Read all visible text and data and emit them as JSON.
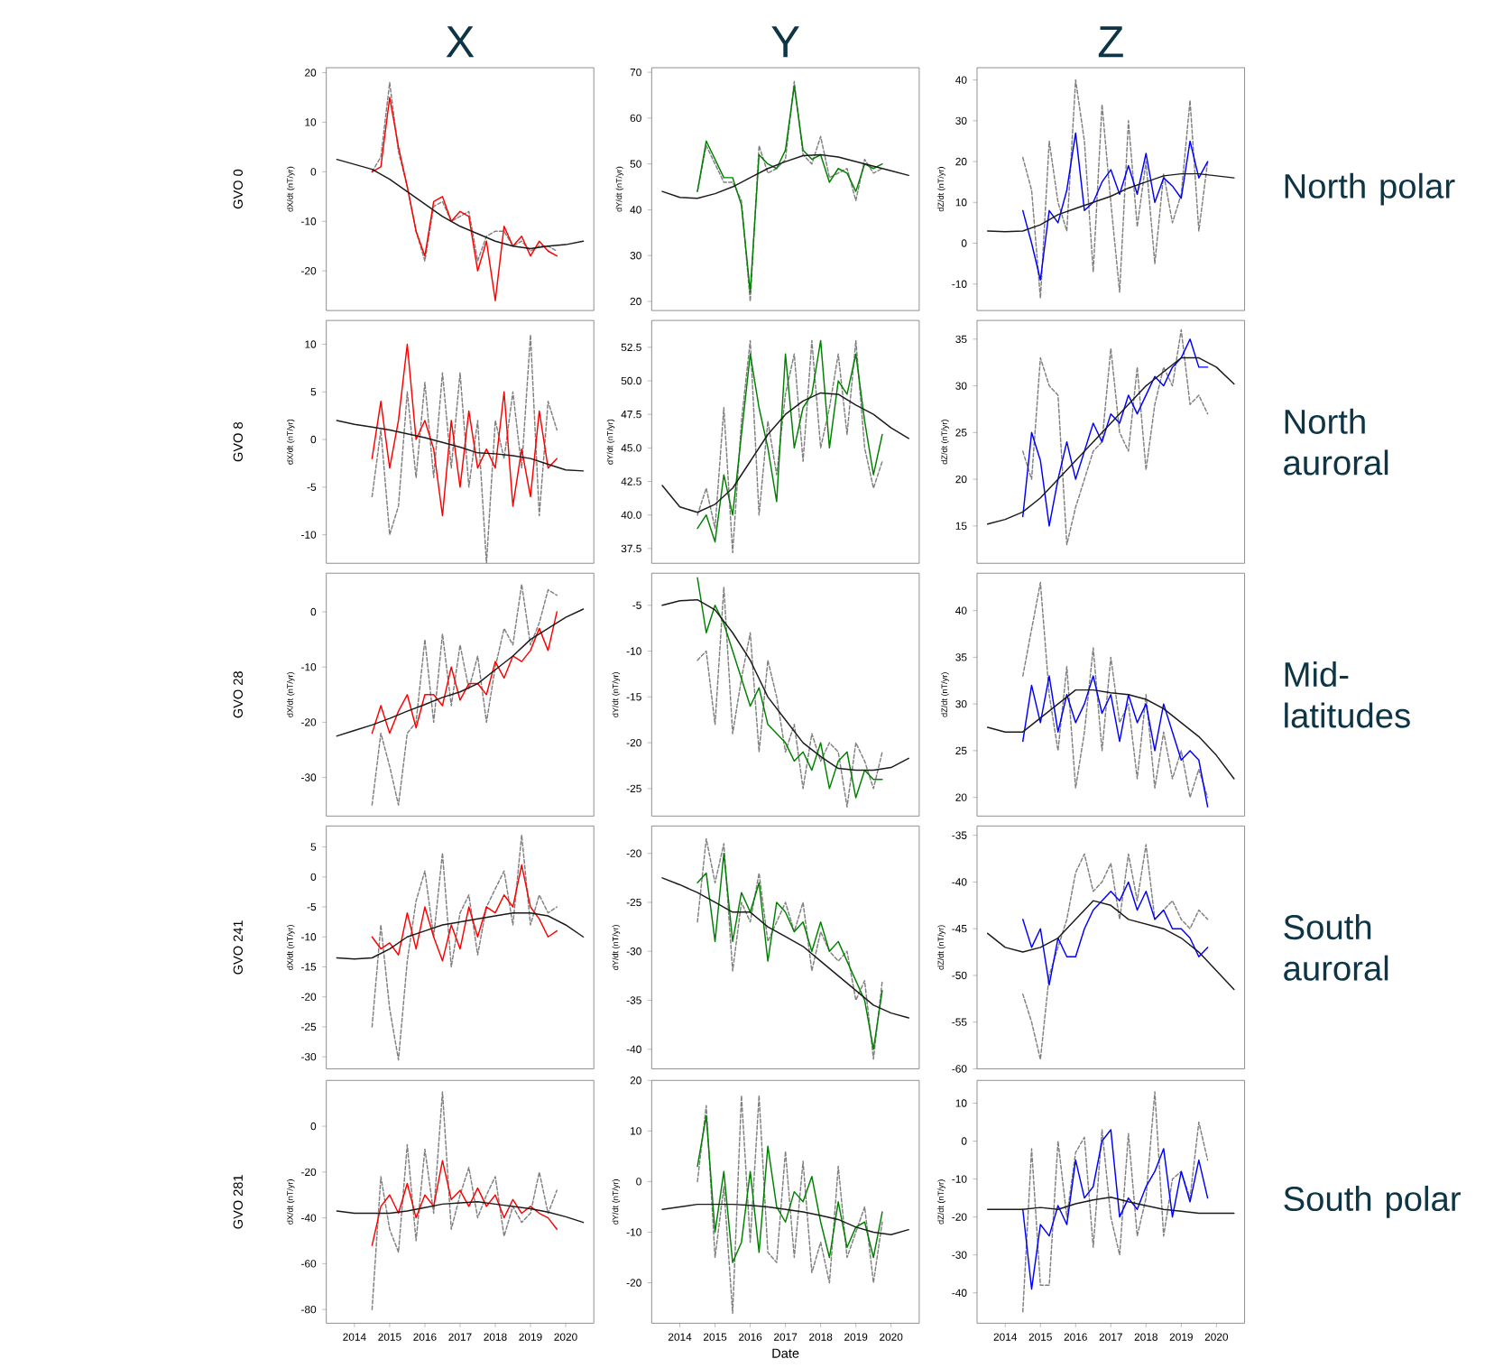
{
  "chart_data": [
    {
      "type": "line",
      "title": "X",
      "ylabel": "dX/dt (nT/yr)",
      "annotations": [
        "GVO 0"
      ],
      "tick_labels": "y",
      "xlim": [
        2013.2,
        2020.8
      ],
      "ylim": [
        -28,
        21
      ],
      "yticks": [
        -20,
        -10,
        0,
        10,
        20
      ],
      "x": [
        2014.5,
        2014.75,
        2015,
        2015.25,
        2015.5,
        2015.75,
        2016,
        2016.25,
        2016.5,
        2016.75,
        2017,
        2017.25,
        2017.5,
        2017.75,
        2018,
        2018.25,
        2018.5,
        2018.75,
        2019,
        2019.25,
        2019.5,
        2019.75
      ],
      "series": [
        {
          "color": "#808080",
          "line_style": "dashed",
          "values": [
            0,
            3,
            18,
            4,
            -3,
            -12,
            -18,
            -7,
            -6,
            -10,
            -9,
            -8,
            -18,
            -13,
            -12,
            -12,
            -15,
            -14,
            -16,
            -15,
            -15,
            -16
          ]
        },
        {
          "color": "#ff0000",
          "values": [
            0,
            1,
            15,
            5,
            -3,
            -12,
            -17,
            -6,
            -5,
            -10,
            -8,
            -9,
            -20,
            -14,
            -26,
            -11,
            -15,
            -13,
            -17,
            -14,
            -16,
            -17
          ]
        },
        {
          "color": "#1a1a1a",
          "x": [
            2013.5,
            2014,
            2014.5,
            2015,
            2015.5,
            2016,
            2016.5,
            2017,
            2017.5,
            2018,
            2018.5,
            2019,
            2019.5,
            2020,
            2020.5
          ],
          "values": [
            2.5,
            1.5,
            0.5,
            -1.5,
            -4,
            -6.5,
            -9,
            -11,
            -12.5,
            -14,
            -15,
            -15.5,
            -15,
            -14.7,
            -14
          ]
        }
      ]
    },
    {
      "type": "line",
      "title": "Y",
      "ylabel": "dY/dt (nT/yr)",
      "tick_labels": "y",
      "xlim": [
        2013.2,
        2020.8
      ],
      "ylim": [
        18,
        71
      ],
      "yticks": [
        20,
        30,
        40,
        50,
        60,
        70
      ],
      "x": [
        2014.5,
        2014.75,
        2015,
        2015.25,
        2015.5,
        2015.75,
        2016,
        2016.25,
        2016.5,
        2016.75,
        2017,
        2017.25,
        2017.5,
        2017.75,
        2018,
        2018.25,
        2018.5,
        2018.75,
        2019,
        2019.25,
        2019.5,
        2019.75
      ],
      "series": [
        {
          "color": "#808080",
          "line_style": "dashed",
          "values": [
            44,
            54,
            50,
            46,
            46,
            42,
            20,
            54,
            48,
            49,
            51,
            68,
            52,
            50,
            56,
            47,
            48,
            49,
            42,
            51,
            48,
            49
          ]
        },
        {
          "color": "#008000",
          "values": [
            44,
            55,
            51,
            47,
            47,
            41,
            22,
            52,
            50,
            49,
            53,
            67,
            53,
            51,
            52,
            46,
            49,
            48,
            44,
            50,
            49,
            50
          ]
        },
        {
          "color": "#1a1a1a",
          "x": [
            2013.5,
            2014,
            2014.5,
            2015,
            2015.5,
            2016,
            2016.5,
            2017,
            2017.5,
            2018,
            2018.5,
            2019,
            2019.5,
            2020,
            2020.5
          ],
          "values": [
            44,
            42.7,
            42.5,
            43.5,
            45,
            47,
            49,
            50.5,
            51.8,
            52,
            51.5,
            50.5,
            49.5,
            48.5,
            47.5
          ]
        }
      ]
    },
    {
      "type": "line",
      "title": "Z",
      "ylabel": "dZ/dt (nT/yr)",
      "annotations": [
        "North polar"
      ],
      "tick_labels": "y",
      "xlim": [
        2013.2,
        2020.8
      ],
      "ylim": [
        -16.5,
        43
      ],
      "yticks": [
        -10,
        0,
        10,
        20,
        30,
        40
      ],
      "x": [
        2014.5,
        2014.75,
        2015,
        2015.25,
        2015.5,
        2015.75,
        2016,
        2016.25,
        2016.5,
        2016.75,
        2017,
        2017.25,
        2017.5,
        2017.75,
        2018,
        2018.25,
        2018.5,
        2018.75,
        2019,
        2019.25,
        2019.5,
        2019.75
      ],
      "series": [
        {
          "color": "#808080",
          "line_style": "dashed",
          "values": [
            21,
            13,
            -13.5,
            25,
            10,
            3,
            40,
            25,
            -7,
            34,
            10,
            -12,
            30,
            4,
            20,
            -5,
            17,
            5,
            12,
            35,
            3,
            20
          ]
        },
        {
          "color": "#0000ff",
          "values": [
            8,
            0,
            -9,
            8,
            5,
            13,
            27,
            8,
            10,
            15,
            18,
            12,
            19,
            12,
            22,
            10,
            16,
            14,
            11,
            25,
            16,
            20
          ]
        },
        {
          "color": "#1a1a1a",
          "x": [
            2013.5,
            2014,
            2014.5,
            2015,
            2015.5,
            2016,
            2016.5,
            2017,
            2017.5,
            2018,
            2018.5,
            2019,
            2019.5,
            2020,
            2020.5
          ],
          "values": [
            3,
            2.8,
            3,
            4.5,
            7,
            8.5,
            10,
            11.5,
            13.5,
            15,
            16.5,
            17,
            17,
            16.5,
            16
          ]
        }
      ]
    },
    {
      "type": "line",
      "ylabel": "dX/dt (nT/yr)",
      "annotations": [
        "GVO 8"
      ],
      "tick_labels": "y",
      "xlim": [
        2013.2,
        2020.8
      ],
      "ylim": [
        -13,
        12.5
      ],
      "yticks": [
        -10,
        -5,
        0,
        5,
        10
      ],
      "x": [
        2014.5,
        2014.75,
        2015,
        2015.25,
        2015.5,
        2015.75,
        2016,
        2016.25,
        2016.5,
        2016.75,
        2017,
        2017.25,
        2017.5,
        2017.75,
        2018,
        2018.25,
        2018.5,
        2018.75,
        2019,
        2019.25,
        2019.5,
        2019.75
      ],
      "series": [
        {
          "color": "#808080",
          "line_style": "dashed",
          "values": [
            -6,
            1,
            -10,
            -7,
            5,
            -4,
            6,
            -4,
            7,
            -3,
            7,
            -5,
            2,
            -13,
            2,
            -2,
            5,
            -3,
            11,
            -8,
            4,
            1
          ]
        },
        {
          "color": "#ff0000",
          "values": [
            -2,
            4,
            -3,
            2,
            10,
            0,
            2,
            -1,
            -8,
            2,
            -5,
            3,
            -3,
            -1,
            -3,
            5,
            -7,
            -1,
            -6,
            3,
            -3,
            -2
          ]
        },
        {
          "color": "#1a1a1a",
          "x": [
            2013.5,
            2014,
            2014.5,
            2015,
            2015.5,
            2016,
            2016.5,
            2017,
            2017.5,
            2018,
            2018.5,
            2019,
            2019.5,
            2020,
            2020.5
          ],
          "values": [
            2,
            1.6,
            1.3,
            1,
            0.6,
            0.2,
            -0.3,
            -0.8,
            -1.4,
            -1.5,
            -1.7,
            -2,
            -2.6,
            -3.2,
            -3.3
          ]
        }
      ]
    },
    {
      "type": "line",
      "ylabel": "dY/dt (nT/yr)",
      "tick_labels": "y",
      "xlim": [
        2013.2,
        2020.8
      ],
      "ylim": [
        36.4,
        54.5
      ],
      "yticks": [
        37.5,
        {
          "value": 40,
          "label": "40.0"
        },
        42.5,
        {
          "value": 45,
          "label": "45.0"
        },
        47.5,
        {
          "value": 50,
          "label": "50.0"
        },
        52.5
      ],
      "x": [
        2014.5,
        2014.75,
        2015,
        2015.25,
        2015.5,
        2015.75,
        2016,
        2016.25,
        2016.5,
        2016.75,
        2017,
        2017.25,
        2017.5,
        2017.75,
        2018,
        2018.25,
        2018.5,
        2018.75,
        2019,
        2019.25,
        2019.5,
        2019.75
      ],
      "series": [
        {
          "color": "#808080",
          "line_style": "dashed",
          "values": [
            40,
            42,
            39,
            48,
            37.2,
            47,
            53,
            40,
            47,
            43,
            49,
            52,
            44,
            53,
            45,
            48,
            52,
            46,
            53,
            45,
            42,
            44
          ]
        },
        {
          "color": "#008000",
          "values": [
            39,
            40,
            38,
            43,
            40,
            46,
            52,
            48,
            45,
            41,
            52,
            45,
            48,
            49,
            53,
            45,
            50,
            49,
            52,
            47,
            43,
            46
          ]
        },
        {
          "color": "#1a1a1a",
          "x": [
            2013.5,
            2014,
            2014.5,
            2015,
            2015.5,
            2016,
            2016.5,
            2017,
            2017.5,
            2018,
            2018.5,
            2019,
            2019.5,
            2020,
            2020.5
          ],
          "values": [
            42.2,
            40.6,
            40.2,
            40.8,
            42,
            44,
            46,
            47.5,
            48.5,
            49.1,
            49,
            48.2,
            47.5,
            46.5,
            45.7
          ]
        }
      ]
    },
    {
      "type": "line",
      "ylabel": "dZ/dt (nT/yr)",
      "annotations": [
        "North auroral"
      ],
      "tick_labels": "y",
      "xlim": [
        2013.2,
        2020.8
      ],
      "ylim": [
        11,
        37
      ],
      "yticks": [
        15,
        20,
        25,
        30,
        35
      ],
      "x": [
        2014.5,
        2014.75,
        2015,
        2015.25,
        2015.5,
        2015.75,
        2016,
        2016.25,
        2016.5,
        2016.75,
        2017,
        2017.25,
        2017.5,
        2017.75,
        2018,
        2018.25,
        2018.5,
        2018.75,
        2019,
        2019.25,
        2019.5,
        2019.75
      ],
      "series": [
        {
          "color": "#808080",
          "line_style": "dashed",
          "values": [
            23,
            20,
            33,
            30,
            29,
            13,
            17,
            20,
            23,
            24,
            34,
            25,
            23,
            32,
            21,
            28,
            32,
            30,
            36,
            28,
            29,
            27
          ]
        },
        {
          "color": "#0000ff",
          "values": [
            16,
            25,
            22,
            15,
            20,
            24,
            20,
            23,
            26,
            24,
            27,
            26,
            29,
            27,
            29,
            31,
            30,
            32,
            33,
            35,
            32,
            32
          ]
        },
        {
          "color": "#1a1a1a",
          "x": [
            2013.5,
            2014,
            2014.5,
            2015,
            2015.5,
            2016,
            2016.5,
            2017,
            2017.5,
            2018,
            2018.5,
            2019,
            2019.5,
            2020,
            2020.5
          ],
          "values": [
            15.2,
            15.7,
            16.5,
            18,
            20,
            22,
            24,
            26,
            28,
            30,
            31.5,
            33,
            33,
            32,
            30.2
          ]
        }
      ]
    },
    {
      "type": "line",
      "ylabel": "dX/dt (nT/yr)",
      "annotations": [
        "GVO 28"
      ],
      "tick_labels": "y",
      "xlim": [
        2013.2,
        2020.8
      ],
      "ylim": [
        -37,
        7
      ],
      "yticks": [
        -30,
        -20,
        -10,
        0
      ],
      "x": [
        2014.5,
        2014.75,
        2015,
        2015.25,
        2015.5,
        2015.75,
        2016,
        2016.25,
        2016.5,
        2016.75,
        2017,
        2017.25,
        2017.5,
        2017.75,
        2018,
        2018.25,
        2018.5,
        2018.75,
        2019,
        2019.25,
        2019.5,
        2019.75
      ],
      "series": [
        {
          "color": "#808080",
          "line_style": "dashed",
          "values": [
            -35,
            -22,
            -28,
            -35,
            -22,
            -20,
            -5,
            -20,
            -4,
            -17,
            -6,
            -14,
            -8,
            -20,
            -10,
            -3,
            -6,
            5,
            -6,
            -2,
            4,
            3
          ]
        },
        {
          "color": "#ff0000",
          "values": [
            -22,
            -17,
            -22,
            -18,
            -15,
            -21,
            -15,
            -15,
            -17,
            -10,
            -16,
            -13,
            -13,
            -15,
            -9,
            -12,
            -8,
            -9,
            -7,
            -3,
            -7,
            0
          ]
        },
        {
          "color": "#1a1a1a",
          "x": [
            2013.5,
            2014,
            2014.5,
            2015,
            2015.5,
            2016,
            2016.5,
            2017,
            2017.5,
            2018,
            2018.5,
            2019,
            2019.5,
            2020,
            2020.5
          ],
          "values": [
            -22.5,
            -21.5,
            -20.5,
            -19.3,
            -18,
            -16.8,
            -15.5,
            -14.5,
            -13,
            -10.5,
            -8,
            -5,
            -3,
            -1,
            0.5
          ]
        }
      ]
    },
    {
      "type": "line",
      "ylabel": "dY/dt (nT/yr)",
      "tick_labels": "y",
      "xlim": [
        2013.2,
        2020.8
      ],
      "ylim": [
        -28,
        -1.5
      ],
      "yticks": [
        -25,
        -20,
        -15,
        -10,
        -5
      ],
      "x": [
        2014.5,
        2014.75,
        2015,
        2015.25,
        2015.5,
        2015.75,
        2016,
        2016.25,
        2016.5,
        2016.75,
        2017,
        2017.25,
        2017.5,
        2017.75,
        2018,
        2018.25,
        2018.5,
        2018.75,
        2019,
        2019.25,
        2019.5,
        2019.75
      ],
      "series": [
        {
          "color": "#808080",
          "line_style": "dashed",
          "values": [
            -11,
            -10,
            -18,
            -3,
            -19,
            -13,
            -8,
            -21,
            -11,
            -15,
            -21,
            -18,
            -25,
            -19,
            -22,
            -20,
            -21,
            -27,
            -20,
            -22,
            -25,
            -21
          ]
        },
        {
          "color": "#008000",
          "values": [
            -2,
            -8,
            -5,
            -7,
            -10,
            -13,
            -16,
            -14,
            -18,
            -19,
            -20,
            -22,
            -21,
            -23,
            -20,
            -25,
            -22,
            -21,
            -26,
            -23,
            -24,
            -24
          ]
        },
        {
          "color": "#1a1a1a",
          "x": [
            2013.5,
            2014,
            2014.5,
            2015,
            2015.5,
            2016,
            2016.5,
            2017,
            2017.5,
            2018,
            2018.5,
            2019,
            2019.5,
            2020,
            2020.5
          ],
          "values": [
            -5,
            -4.5,
            -4.4,
            -5.5,
            -8,
            -11,
            -15,
            -17.5,
            -20,
            -21.5,
            -22.8,
            -23,
            -23,
            -22.7,
            -21.7
          ]
        }
      ]
    },
    {
      "type": "line",
      "ylabel": "dZ/dt (nT/yr)",
      "annotations": [
        "Mid-latitudes"
      ],
      "tick_labels": "y",
      "xlim": [
        2013.2,
        2020.8
      ],
      "ylim": [
        18,
        44
      ],
      "yticks": [
        20,
        25,
        30,
        35,
        40
      ],
      "x": [
        2014.5,
        2014.75,
        2015,
        2015.25,
        2015.5,
        2015.75,
        2016,
        2016.25,
        2016.5,
        2016.75,
        2017,
        2017.25,
        2017.5,
        2017.75,
        2018,
        2018.25,
        2018.5,
        2018.75,
        2019,
        2019.25,
        2019.5,
        2019.75
      ],
      "series": [
        {
          "color": "#808080",
          "line_style": "dashed",
          "values": [
            33,
            38,
            43,
            31,
            25,
            34,
            21,
            27,
            36,
            25,
            35,
            28,
            30,
            22,
            31,
            21,
            27,
            22,
            25,
            20,
            23,
            20
          ]
        },
        {
          "color": "#0000ff",
          "values": [
            26,
            32,
            28,
            33,
            27,
            31,
            28,
            30,
            33,
            29,
            31,
            26,
            31,
            28,
            30,
            25,
            30,
            27,
            24,
            25,
            24,
            19
          ]
        },
        {
          "color": "#1a1a1a",
          "x": [
            2013.5,
            2014,
            2014.5,
            2015,
            2015.5,
            2016,
            2016.5,
            2017,
            2017.5,
            2018,
            2018.5,
            2019,
            2019.5,
            2020,
            2020.5
          ],
          "values": [
            27.5,
            27,
            27,
            28.5,
            30,
            31.5,
            31.5,
            31.2,
            31,
            30.5,
            29.5,
            28,
            26.5,
            24.5,
            22
          ]
        }
      ]
    },
    {
      "type": "line",
      "ylabel": "dX/dt (nT/yr)",
      "annotations": [
        "GVO 241"
      ],
      "tick_labels": "y",
      "xlim": [
        2013.2,
        2020.8
      ],
      "ylim": [
        -32,
        8.5
      ],
      "yticks": [
        -30,
        -25,
        -20,
        -15,
        -10,
        -5,
        0,
        5
      ],
      "x": [
        2014.5,
        2014.75,
        2015,
        2015.25,
        2015.5,
        2015.75,
        2016,
        2016.25,
        2016.5,
        2016.75,
        2017,
        2017.25,
        2017.5,
        2017.75,
        2018,
        2018.25,
        2018.5,
        2018.75,
        2019,
        2019.25,
        2019.5,
        2019.75
      ],
      "series": [
        {
          "color": "#808080",
          "line_style": "dashed",
          "values": [
            -25,
            -8,
            -22,
            -30.5,
            -14,
            -4,
            1,
            -10,
            4,
            -15,
            -6,
            -3,
            -13,
            -5,
            -2,
            1,
            -8,
            7,
            -8,
            -3,
            -6,
            -5
          ]
        },
        {
          "color": "#ff0000",
          "values": [
            -10,
            -12,
            -11,
            -13,
            -6,
            -12,
            -5,
            -10,
            -14,
            -8,
            -12,
            -5,
            -10,
            -5,
            -6,
            -3,
            -5,
            2,
            -5,
            -7,
            -10,
            -9
          ]
        },
        {
          "color": "#1a1a1a",
          "x": [
            2013.5,
            2014,
            2014.5,
            2015,
            2015.5,
            2016,
            2016.5,
            2017,
            2017.5,
            2018,
            2018.5,
            2019,
            2019.5,
            2020,
            2020.5
          ],
          "values": [
            -13.5,
            -13.7,
            -13.5,
            -12,
            -10,
            -9,
            -8,
            -7.5,
            -7,
            -6.5,
            -6,
            -6,
            -6.5,
            -8,
            -10
          ]
        }
      ]
    },
    {
      "type": "line",
      "ylabel": "dY/dt (nT/yr)",
      "tick_labels": "y",
      "xlim": [
        2013.2,
        2020.8
      ],
      "ylim": [
        -42,
        -17.2
      ],
      "yticks": [
        -40,
        -35,
        -30,
        -25,
        -20
      ],
      "x": [
        2014.5,
        2014.75,
        2015,
        2015.25,
        2015.5,
        2015.75,
        2016,
        2016.25,
        2016.5,
        2016.75,
        2017,
        2017.25,
        2017.5,
        2017.75,
        2018,
        2018.25,
        2018.5,
        2018.75,
        2019,
        2019.25,
        2019.5,
        2019.75
      ],
      "series": [
        {
          "color": "#808080",
          "line_style": "dashed",
          "values": [
            -27,
            -18.5,
            -23,
            -19,
            -32,
            -25,
            -27,
            -22,
            -29,
            -27,
            -25,
            -28,
            -25,
            -32,
            -28,
            -30,
            -31,
            -30,
            -35,
            -33,
            -41,
            -33
          ]
        },
        {
          "color": "#008000",
          "values": [
            -23,
            -22,
            -29,
            -20,
            -29,
            -24,
            -26,
            -23,
            -31,
            -25,
            -26,
            -28,
            -27,
            -30,
            -27,
            -30,
            -29,
            -31,
            -33,
            -35,
            -40,
            -34
          ]
        },
        {
          "color": "#1a1a1a",
          "x": [
            2013.5,
            2014,
            2014.5,
            2015,
            2015.5,
            2016,
            2016.5,
            2017,
            2017.5,
            2018,
            2018.5,
            2019,
            2019.5,
            2020,
            2020.5
          ],
          "values": [
            -22.5,
            -23.2,
            -24,
            -25,
            -26,
            -26,
            -27.5,
            -28.5,
            -29.5,
            -31,
            -32.5,
            -34,
            -35.5,
            -36.3,
            -36.8
          ]
        }
      ]
    },
    {
      "type": "line",
      "ylabel": "dZ/dt (nT/yr)",
      "annotations": [
        "South auroral"
      ],
      "tick_labels": "y",
      "xlim": [
        2013.2,
        2020.8
      ],
      "ylim": [
        -60,
        -34
      ],
      "yticks": [
        -60,
        -55,
        -50,
        -45,
        -40,
        -35
      ],
      "x": [
        2014.5,
        2014.75,
        2015,
        2015.25,
        2015.5,
        2015.75,
        2016,
        2016.25,
        2016.5,
        2016.75,
        2017,
        2017.25,
        2017.5,
        2017.75,
        2018,
        2018.25,
        2018.5,
        2018.75,
        2019,
        2019.25,
        2019.5,
        2019.75
      ],
      "series": [
        {
          "color": "#808080",
          "line_style": "dashed",
          "values": [
            -52,
            -55,
            -59,
            -50,
            -47,
            -44,
            -39,
            -37,
            -41,
            -40,
            -38,
            -44,
            -37,
            -42,
            -36,
            -44,
            -43,
            -42,
            -44,
            -45,
            -43,
            -44
          ]
        },
        {
          "color": "#0000ff",
          "values": [
            -44,
            -47,
            -45,
            -51,
            -46,
            -48,
            -48,
            -45,
            -43,
            -42,
            -41,
            -42,
            -40,
            -43,
            -41,
            -44,
            -43,
            -45,
            -45,
            -46,
            -48,
            -47
          ]
        },
        {
          "color": "#1a1a1a",
          "x": [
            2013.5,
            2014,
            2014.5,
            2015,
            2015.5,
            2016,
            2016.5,
            2017,
            2017.5,
            2018,
            2018.5,
            2019,
            2019.5,
            2020,
            2020.5
          ],
          "values": [
            -45.5,
            -47,
            -47.5,
            -47,
            -46,
            -44,
            -42,
            -42.5,
            -44,
            -44.5,
            -45,
            -46,
            -47.5,
            -49.5,
            -51.5
          ]
        }
      ]
    },
    {
      "type": "line",
      "ylabel": "dX/dt (nT/yr)",
      "annotations": [
        "GVO 281"
      ],
      "xlim": [
        2013.2,
        2020.8
      ],
      "xticks": [
        2014,
        2015,
        2016,
        2017,
        2018,
        2019,
        2020
      ],
      "ylim": [
        -86,
        20
      ],
      "yticks": [
        -80,
        -60,
        -40,
        -20,
        0
      ],
      "x": [
        2014.5,
        2014.75,
        2015,
        2015.25,
        2015.5,
        2015.75,
        2016,
        2016.25,
        2016.5,
        2016.75,
        2017,
        2017.25,
        2017.5,
        2017.75,
        2018,
        2018.25,
        2018.5,
        2018.75,
        2019,
        2019.25,
        2019.5,
        2019.75
      ],
      "series": [
        {
          "color": "#808080",
          "line_style": "dashed",
          "values": [
            -80,
            -22,
            -45,
            -55,
            -8,
            -50,
            -10,
            -38,
            15,
            -45,
            -30,
            -18,
            -40,
            -30,
            -22,
            -48,
            -35,
            -42,
            -38,
            -20,
            -38,
            -28
          ]
        },
        {
          "color": "#ff0000",
          "values": [
            -52,
            -35,
            -30,
            -38,
            -25,
            -40,
            -30,
            -35,
            -15,
            -32,
            -28,
            -35,
            -27,
            -35,
            -30,
            -40,
            -32,
            -38,
            -35,
            -38,
            -40,
            -45
          ]
        },
        {
          "color": "#1a1a1a",
          "x": [
            2013.5,
            2014,
            2014.5,
            2015,
            2015.5,
            2016,
            2016.5,
            2017,
            2017.5,
            2018,
            2018.5,
            2019,
            2019.5,
            2020,
            2020.5
          ],
          "values": [
            -37,
            -38,
            -38,
            -38,
            -37,
            -35.5,
            -34,
            -33.5,
            -33,
            -34,
            -35,
            -36,
            -37.5,
            -39.5,
            -42
          ]
        }
      ]
    },
    {
      "type": "line",
      "ylabel": "dY/dt (nT/yr)",
      "xlabel": "Date",
      "xlim": [
        2013.2,
        2020.8
      ],
      "xticks": [
        2014,
        2015,
        2016,
        2017,
        2018,
        2019,
        2020
      ],
      "ylim": [
        -28,
        20
      ],
      "yticks": [
        -20,
        -10,
        0,
        10,
        20
      ],
      "x": [
        2014.5,
        2014.75,
        2015,
        2015.25,
        2015.5,
        2015.75,
        2016,
        2016.25,
        2016.5,
        2016.75,
        2017,
        2017.25,
        2017.5,
        2017.75,
        2018,
        2018.25,
        2018.5,
        2018.75,
        2019,
        2019.25,
        2019.5,
        2019.75
      ],
      "series": [
        {
          "color": "#808080",
          "line_style": "dashed",
          "values": [
            0,
            15,
            -15,
            -1,
            -26,
            17,
            -12,
            17,
            -14,
            -16,
            6,
            -15,
            4,
            -18,
            -12,
            -20,
            3,
            -15,
            -10,
            -5,
            -20,
            -8
          ]
        },
        {
          "color": "#008000",
          "values": [
            3,
            13,
            -10,
            2,
            -16,
            -12,
            2,
            -14,
            7,
            -5,
            -8,
            -2,
            -4,
            1,
            -8,
            -15,
            -4,
            -13,
            -9,
            -8,
            -15,
            -6
          ]
        },
        {
          "color": "#1a1a1a",
          "x": [
            2013.5,
            2014,
            2014.5,
            2015,
            2015.5,
            2016,
            2016.5,
            2017,
            2017.5,
            2018,
            2018.5,
            2019,
            2019.5,
            2020,
            2020.5
          ],
          "values": [
            -5.5,
            -5,
            -4.5,
            -4.5,
            -4.5,
            -4.7,
            -5,
            -5.5,
            -6,
            -6.7,
            -7.5,
            -9,
            -10,
            -10.5,
            -9.5
          ]
        }
      ]
    },
    {
      "type": "line",
      "ylabel": "dZ/dt (nT/yr)",
      "annotations": [
        "South polar"
      ],
      "xlim": [
        2013.2,
        2020.8
      ],
      "xticks": [
        2014,
        2015,
        2016,
        2017,
        2018,
        2019,
        2020
      ],
      "ylim": [
        -48,
        16
      ],
      "yticks": [
        -40,
        -30,
        -20,
        -10,
        0,
        10
      ],
      "x": [
        2014.5,
        2014.75,
        2015,
        2015.25,
        2015.5,
        2015.75,
        2016,
        2016.25,
        2016.5,
        2016.75,
        2017,
        2017.25,
        2017.5,
        2017.75,
        2018,
        2018.25,
        2018.5,
        2018.75,
        2019,
        2019.25,
        2019.5,
        2019.75
      ],
      "series": [
        {
          "color": "#808080",
          "line_style": "dashed",
          "values": [
            -45,
            -2,
            -38,
            -38,
            0,
            -20,
            -3,
            1,
            -28,
            3,
            -20,
            -30,
            2,
            -25,
            -15,
            13,
            -25,
            -10,
            -8,
            -15,
            5,
            -5
          ]
        },
        {
          "color": "#0000ff",
          "values": [
            -18,
            -39,
            -22,
            -25,
            -17,
            -22,
            -5,
            -15,
            -12,
            0,
            3,
            -20,
            -15,
            -18,
            -12,
            -8,
            -2,
            -20,
            -8,
            -16,
            -5,
            -15
          ]
        },
        {
          "color": "#1a1a1a",
          "x": [
            2013.5,
            2014,
            2014.5,
            2015,
            2015.5,
            2016,
            2016.5,
            2017,
            2017.5,
            2018,
            2018.5,
            2019,
            2019.5,
            2020,
            2020.5
          ],
          "values": [
            -18,
            -18,
            -18,
            -17.5,
            -18,
            -16.5,
            -15.5,
            -14.8,
            -16,
            -17,
            -18,
            -18.5,
            -19,
            -19,
            -19
          ]
        }
      ]
    }
  ]
}
